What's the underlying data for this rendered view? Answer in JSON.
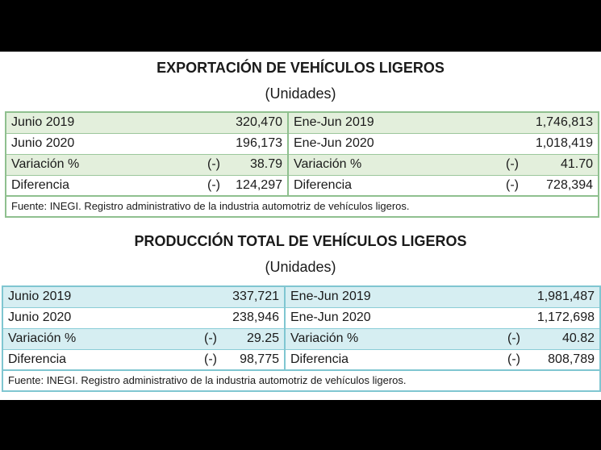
{
  "export": {
    "title": "EXPORTACIÓN DE VEHÍCULOS LIGEROS",
    "subtitle": "(Unidades)",
    "rows": [
      {
        "left_label": "Junio 2019",
        "left_sign": "",
        "left_value": "320,470",
        "right_label": "Ene-Jun 2019",
        "right_sign": "",
        "right_value": "1,746,813"
      },
      {
        "left_label": "Junio 2020",
        "left_sign": "",
        "left_value": "196,173",
        "right_label": "Ene-Jun 2020",
        "right_sign": "",
        "right_value": "1,018,419"
      },
      {
        "left_label": "Variación %",
        "left_sign": "(-)",
        "left_value": "38.79",
        "right_label": "Variación %",
        "right_sign": "(-)",
        "right_value": "41.70"
      },
      {
        "left_label": "Diferencia",
        "left_sign": "(-)",
        "left_value": "124,297",
        "right_label": "Diferencia",
        "right_sign": "(-)",
        "right_value": "728,394"
      }
    ],
    "source": "Fuente: INEGI. Registro administrativo de la industria automotriz de vehículos ligeros.",
    "accent_color": "#8fc08f",
    "band_color": "#e3efdc"
  },
  "production": {
    "title": "PRODUCCIÓN TOTAL DE VEHÍCULOS LIGEROS",
    "subtitle": "(Unidades)",
    "rows": [
      {
        "left_label": "Junio 2019",
        "left_sign": "",
        "left_value": "337,721",
        "right_label": "Ene-Jun 2019",
        "right_sign": "",
        "right_value": "1,981,487"
      },
      {
        "left_label": "Junio 2020",
        "left_sign": "",
        "left_value": "238,946",
        "right_label": "Ene-Jun 2020",
        "right_sign": "",
        "right_value": "1,172,698"
      },
      {
        "left_label": "Variación %",
        "left_sign": "(-)",
        "left_value": "29.25",
        "right_label": "Variación %",
        "right_sign": "(-)",
        "right_value": "40.82"
      },
      {
        "left_label": "Diferencia",
        "left_sign": "(-)",
        "left_value": "98,775",
        "right_label": "Diferencia",
        "right_sign": "(-)",
        "right_value": "808,789"
      }
    ],
    "source": "Fuente: INEGI. Registro administrativo de la industria automotriz de vehículos ligeros.",
    "accent_color": "#7fc6d1",
    "band_color": "#d6eef2"
  }
}
